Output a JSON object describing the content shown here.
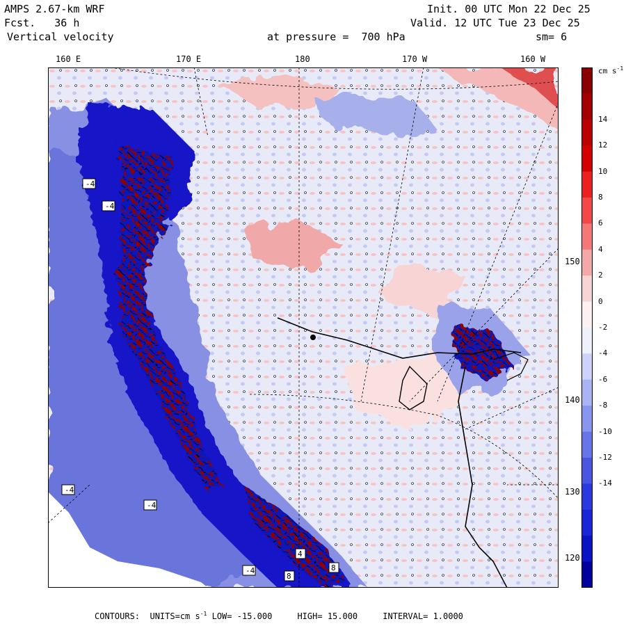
{
  "header": {
    "model": "AMPS 2.67-km WRF",
    "forecast_label": "Fcst.",
    "forecast_value": "36 h",
    "field": "Vertical velocity",
    "init_label": "Init.",
    "init_value": "00 UTC Mon 22 Dec 25",
    "valid_label": "Valid.",
    "valid_value": "12 UTC Tue 23 Dec 25",
    "pressure_label": "at pressure =",
    "pressure_value": "700 hPa",
    "smoothing": "sm= 6"
  },
  "longitude_labels": [
    "160 E",
    "170 E",
    "180",
    "170 W",
    "160 W"
  ],
  "latitude_labels": [
    "150 W",
    "140 W",
    "130 W",
    "120 W"
  ],
  "colorbar": {
    "units": "cm s",
    "units_exp": "-1",
    "levels": [
      "14",
      "12",
      "10",
      "8",
      "6",
      "4",
      "2",
      "0",
      "-2",
      "-4",
      "-6",
      "-8",
      "-10",
      "-12",
      "-14"
    ],
    "colors": [
      "#8b0000",
      "#a40000",
      "#bb0000",
      "#d40000",
      "#ec2020",
      "#f44848",
      "#f47878",
      "#f4a8a8",
      "#f8d4d4",
      "#fcf0f0",
      "#eef0fc",
      "#ccd2fa",
      "#aab4f4",
      "#8896ee",
      "#6676e8",
      "#4a56e2",
      "#2c38e0",
      "#1a24d8",
      "#0a14c4",
      "#00009c"
    ]
  },
  "footer": {
    "contours_label": "CONTOURS:",
    "units_label": "UNITS=cm s",
    "units_exp": "-1",
    "low_label": "LOW=",
    "low_value": "-15.000",
    "high_label": "HIGH=",
    "high_value": "15.000",
    "interval_label": "INTERVAL=",
    "interval_value": "1.0000"
  },
  "map_annotations": [
    "-4",
    "-4",
    "-4",
    "-4",
    "-4",
    "8",
    "8",
    "4"
  ],
  "colors": {
    "background_field": "#e8eaf8",
    "positive_field": "#f4b8b8",
    "negative_field": "#8890e4",
    "strong_negative": "#1218c8",
    "strong_positive": "#8b0000",
    "contour": "#000000"
  }
}
